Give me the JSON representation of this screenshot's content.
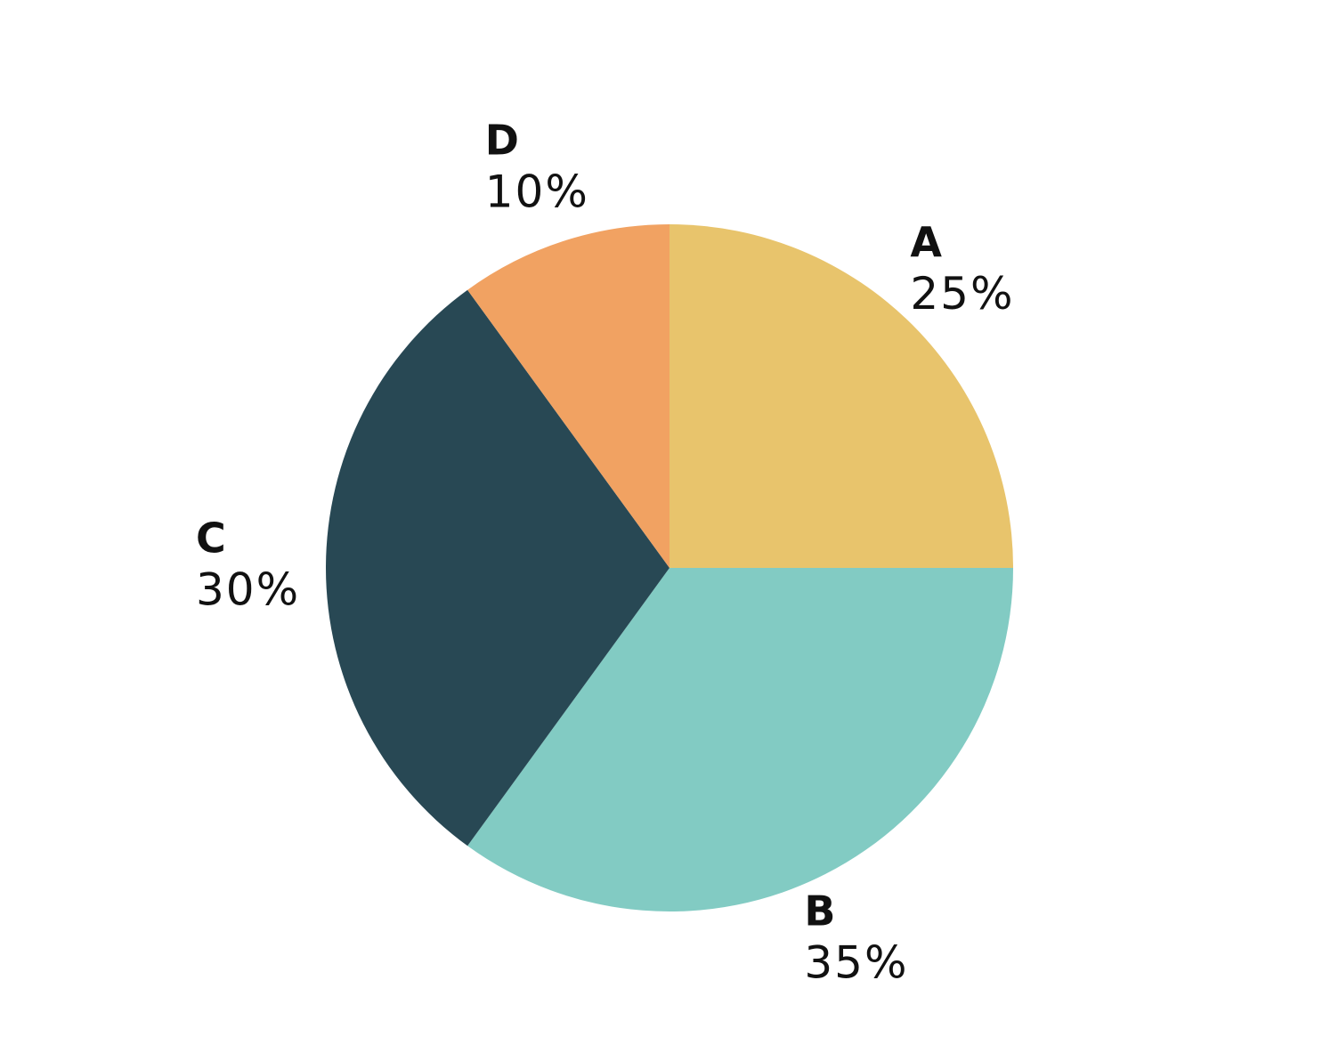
{
  "chart_data": {
    "type": "pie",
    "categories": [
      "A",
      "B",
      "C",
      "D"
    ],
    "values": [
      25,
      35,
      30,
      10
    ],
    "value_labels": [
      "25%",
      "35%",
      "30%",
      "10%"
    ],
    "colors": [
      "#e8c46c",
      "#82cbc3",
      "#284854",
      "#f1a262"
    ]
  }
}
